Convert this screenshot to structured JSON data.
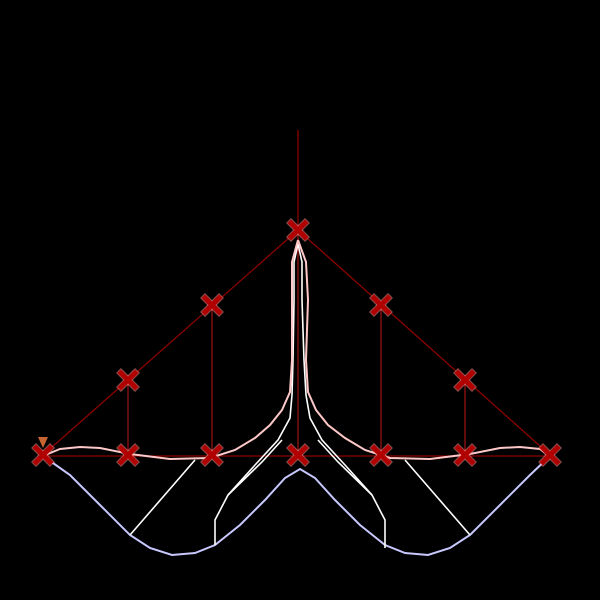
{
  "canvas": {
    "background": "#000000"
  },
  "colors": {
    "structure_line": "#8b0000",
    "vertical_member": "#c01818",
    "control_marker": "#b00000",
    "control_marker_outline": "#ff9090",
    "pink_curve": "#ffc8c8",
    "white_curve": "#ffffff",
    "lavender_curve": "#c8c8ff",
    "anchor_marker": "#c86432"
  },
  "markers": {
    "control_icon": "x-cross-icon",
    "anchor_icon": "triangle-down-icon"
  }
}
